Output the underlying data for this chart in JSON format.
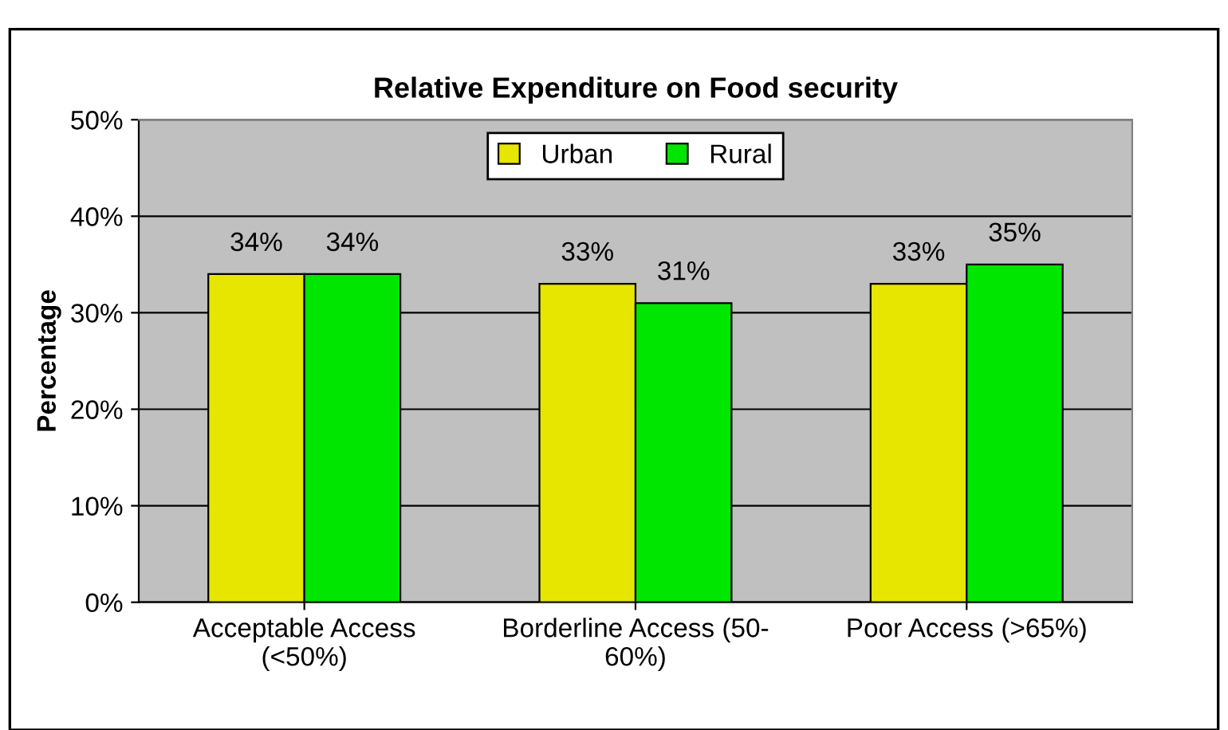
{
  "chart_data": {
    "type": "bar",
    "title": "Relative Expenditure on Food security",
    "ylabel": "Percentage",
    "categories": [
      "Acceptable Access\n(<50%)",
      "Borderline Access (50-\n60%)",
      "Poor Access (>65%)"
    ],
    "series": [
      {
        "name": "Urban",
        "color": "#e6e600",
        "values": [
          34,
          33,
          33
        ]
      },
      {
        "name": "Rural",
        "color": "#00e600",
        "values": [
          34,
          31,
          35
        ]
      }
    ],
    "value_labels": [
      [
        "34%",
        "33%",
        "33%"
      ],
      [
        "34%",
        "31%",
        "35%"
      ]
    ],
    "ylim": [
      0,
      50
    ],
    "yticks": [
      {
        "value": 0,
        "label": "0%"
      },
      {
        "value": 10,
        "label": "10%"
      },
      {
        "value": 20,
        "label": "20%"
      },
      {
        "value": 30,
        "label": "30%"
      },
      {
        "value": 40,
        "label": "40%"
      },
      {
        "value": 50,
        "label": "50%"
      }
    ],
    "grid": "y",
    "legend": "top"
  }
}
